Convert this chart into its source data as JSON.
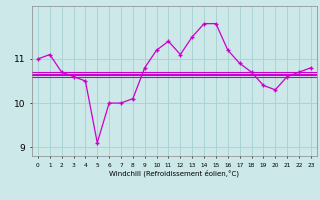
{
  "xlabel": "Windchill (Refroidissement éolien,°C)",
  "bg_color": "#cce8e8",
  "grid_color": "#aad4d4",
  "line_color": "#cc00cc",
  "ref_color": "#cc00cc",
  "hours": [
    0,
    1,
    2,
    3,
    4,
    5,
    6,
    7,
    8,
    9,
    10,
    11,
    12,
    13,
    14,
    15,
    16,
    17,
    18,
    19,
    20,
    21,
    22,
    23
  ],
  "windchill": [
    11.0,
    11.1,
    10.7,
    10.6,
    10.5,
    9.1,
    10.0,
    10.0,
    10.1,
    10.8,
    11.2,
    11.4,
    11.1,
    11.5,
    11.8,
    11.8,
    11.2,
    10.9,
    10.7,
    10.4,
    10.3,
    10.6,
    10.7,
    10.8
  ],
  "ref_lines": [
    10.6,
    10.63,
    10.67,
    10.7
  ],
  "ylim": [
    8.8,
    12.2
  ],
  "yticks": [
    9,
    10,
    11
  ],
  "xlim_min": -0.5,
  "xlim_max": 23.5
}
